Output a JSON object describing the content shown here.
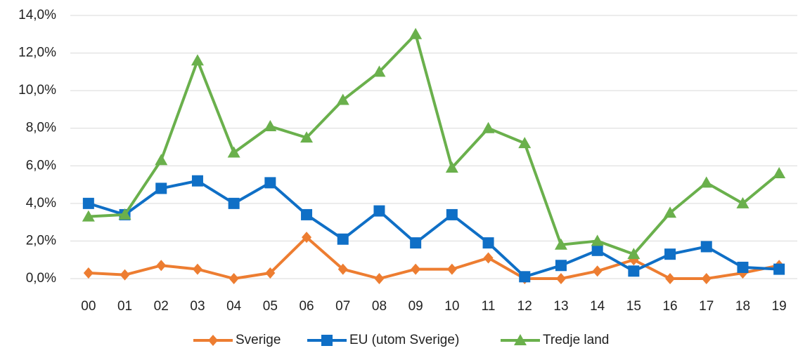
{
  "chart_data": {
    "type": "line",
    "categories": [
      "00",
      "01",
      "02",
      "03",
      "04",
      "05",
      "06",
      "07",
      "08",
      "09",
      "10",
      "11",
      "12",
      "13",
      "14",
      "15",
      "16",
      "17",
      "18",
      "19"
    ],
    "series": [
      {
        "name": "Sverige",
        "color": "#ed7d31",
        "marker": "diamond",
        "values": [
          0.3,
          0.2,
          0.7,
          0.5,
          0.0,
          0.3,
          2.2,
          0.5,
          0.0,
          0.5,
          0.5,
          1.1,
          0.0,
          0.0,
          0.4,
          1.0,
          0.0,
          0.0,
          0.3,
          0.7
        ]
      },
      {
        "name": "EU (utom Sverige)",
        "color": "#0f6fc6",
        "marker": "square",
        "values": [
          4.0,
          3.4,
          4.8,
          5.2,
          4.0,
          5.1,
          3.4,
          2.1,
          3.6,
          1.9,
          3.4,
          1.9,
          0.1,
          0.7,
          1.5,
          0.4,
          1.3,
          1.7,
          0.6,
          0.5
        ]
      },
      {
        "name": "Tredje land",
        "color": "#6ab04c",
        "marker": "triangle",
        "values": [
          3.3,
          3.4,
          6.3,
          11.6,
          6.7,
          8.1,
          7.5,
          9.5,
          11.0,
          13.0,
          5.9,
          8.0,
          7.2,
          1.8,
          2.0,
          1.3,
          3.5,
          5.1,
          4.0,
          5.6
        ]
      }
    ],
    "ylim": [
      0,
      14
    ],
    "yticks": [
      {
        "value": 0,
        "label": "0,0%"
      },
      {
        "value": 2,
        "label": "2,0%"
      },
      {
        "value": 4,
        "label": "4,0%"
      },
      {
        "value": 6,
        "label": "6,0%"
      },
      {
        "value": 8,
        "label": "8,0%"
      },
      {
        "value": 10,
        "label": "10,0%"
      },
      {
        "value": 12,
        "label": "12,0%"
      },
      {
        "value": 14,
        "label": "14,0%"
      }
    ],
    "grid": true,
    "legend": "bottom"
  }
}
